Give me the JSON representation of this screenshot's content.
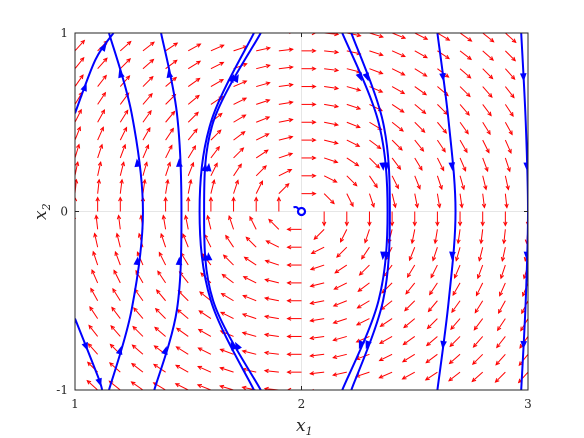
{
  "chart_data": {
    "type": "quiver",
    "title": "",
    "xlabel": "x",
    "xlabel_sub": "1",
    "ylabel": "x",
    "ylabel_sub": "2",
    "xlim": [
      1,
      3
    ],
    "ylim": [
      -1,
      1
    ],
    "xticks": [
      1,
      2,
      3
    ],
    "xtick_labels": [
      "1",
      "2",
      "3"
    ],
    "yticks": [
      -1,
      0,
      1
    ],
    "ytick_labels": [
      "-1",
      "0",
      "1"
    ],
    "grid": "at x1=2 and x2=0",
    "vector_field": {
      "color": "#ff0000",
      "grid_x": [
        1.0,
        1.1,
        1.2,
        1.3,
        1.4,
        1.5,
        1.6,
        1.7,
        1.8,
        1.9,
        2.0,
        2.1,
        2.2,
        2.3,
        2.4,
        2.5,
        2.6,
        2.7,
        2.8,
        2.9,
        3.0
      ],
      "grid_y": [
        -1.0,
        -0.9,
        -0.8,
        -0.7,
        -0.6,
        -0.5,
        -0.4,
        -0.3,
        -0.2,
        -0.1,
        0.0,
        0.1,
        0.2,
        0.3,
        0.4,
        0.5,
        0.6,
        0.7,
        0.8,
        0.9,
        1.0
      ],
      "field": "dx1/dt = x2, dx2/dt = -(x1 - 2)"
    },
    "equilibrium": {
      "x": 2.0,
      "y": 0.0,
      "color": "#0000ff"
    },
    "trajectories": {
      "color": "#0000ff",
      "series": [
        {
          "points": [
            [
              1.0,
              -0.6
            ],
            [
              1.1,
              -0.92
            ],
            [
              1.12,
              -1.0
            ]
          ]
        },
        {
          "points": [
            [
              1.0,
              0.55
            ],
            [
              1.09,
              0.85
            ],
            [
              1.17,
              1.0
            ]
          ]
        },
        {
          "points": [
            [
              1.15,
              -1.0
            ],
            [
              1.25,
              -0.55
            ],
            [
              1.3,
              0.0
            ],
            [
              1.25,
              0.55
            ],
            [
              1.15,
              1.0
            ]
          ]
        },
        {
          "points": [
            [
              1.35,
              -1.0
            ],
            [
              1.45,
              -0.55
            ],
            [
              1.47,
              0.0
            ],
            [
              1.45,
              0.55
            ],
            [
              1.38,
              1.0
            ]
          ]
        },
        {
          "points": [
            [
              1.79,
              -1.0
            ],
            [
              1.6,
              -0.5
            ],
            [
              1.55,
              0.0
            ],
            [
              1.6,
              0.5
            ],
            [
              1.79,
              1.0
            ]
          ]
        },
        {
          "points": [
            [
              1.82,
              -1.0
            ],
            [
              1.61,
              -0.5
            ],
            [
              1.57,
              0.0
            ],
            [
              1.61,
              0.5
            ],
            [
              1.82,
              1.0
            ]
          ]
        },
        {
          "points": [
            [
              2.18,
              1.0
            ],
            [
              2.34,
              0.5
            ],
            [
              2.38,
              0.0
            ],
            [
              2.34,
              -0.5
            ],
            [
              2.18,
              -1.0
            ]
          ]
        },
        {
          "points": [
            [
              2.22,
              1.0
            ],
            [
              2.36,
              0.5
            ],
            [
              2.39,
              0.0
            ],
            [
              2.36,
              -0.5
            ],
            [
              2.22,
              -1.0
            ]
          ]
        },
        {
          "points": [
            [
              2.6,
              1.0
            ],
            [
              2.65,
              0.5
            ],
            [
              2.68,
              0.0
            ],
            [
              2.65,
              -0.5
            ],
            [
              2.6,
              -1.0
            ]
          ]
        },
        {
          "points": [
            [
              2.97,
              1.0
            ],
            [
              2.99,
              0.5
            ],
            [
              3.0,
              0.0
            ],
            [
              2.99,
              -0.5
            ],
            [
              2.97,
              -1.0
            ]
          ]
        }
      ]
    }
  }
}
